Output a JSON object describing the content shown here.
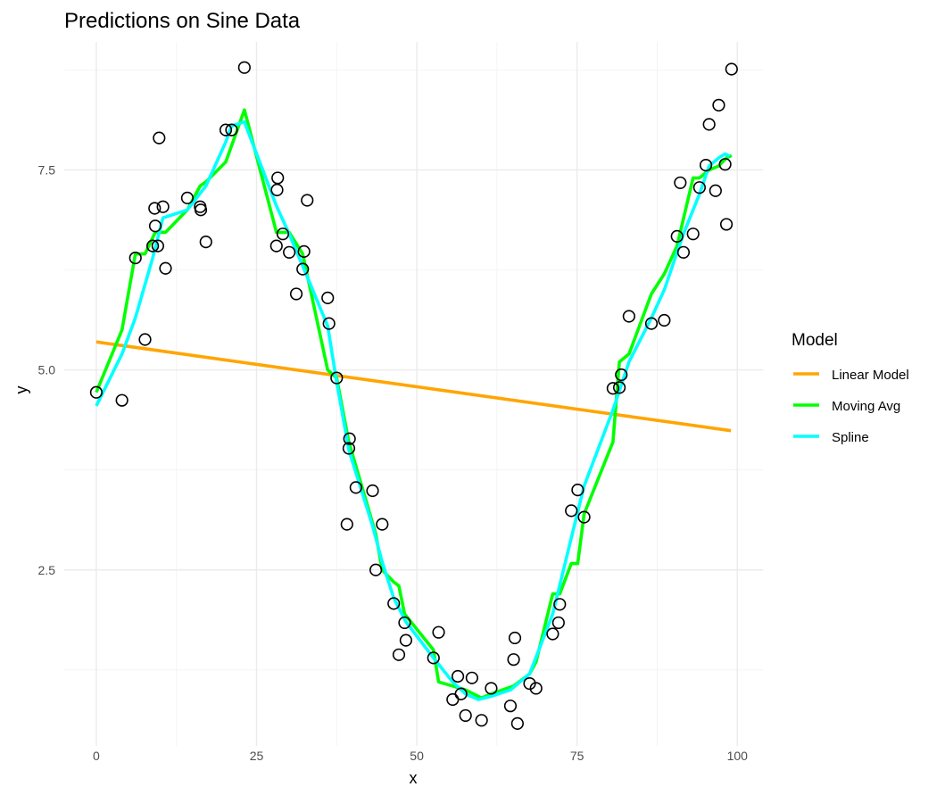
{
  "chart_data": {
    "type": "scatter",
    "title": "Predictions on Sine Data",
    "xlabel": "x",
    "ylabel": "y",
    "xlim": [
      -5,
      104
    ],
    "ylim": [
      0.3,
      9.1
    ],
    "x_ticks": [
      0,
      25,
      50,
      75,
      100
    ],
    "x_tick_labels": [
      "0",
      "25",
      "50",
      "75",
      "100"
    ],
    "y_ticks": [
      2.5,
      5.0,
      7.5
    ],
    "y_tick_labels": [
      "2.5",
      "5.0",
      "7.5"
    ],
    "grid": true,
    "legend": {
      "title": "Model",
      "position": "right"
    },
    "points": {
      "x": [
        0,
        4,
        6.1,
        7.6,
        8.8,
        9.1,
        9.2,
        9.6,
        9.8,
        10.4,
        10.8,
        14.2,
        16.2,
        16.3,
        17.1,
        20.2,
        21.1,
        23.1,
        28.1,
        28.2,
        28.3,
        29.1,
        30.1,
        31.2,
        32.2,
        32.4,
        32.9,
        36.1,
        36.3,
        37.5,
        39.1,
        39.4,
        39.5,
        40.5,
        43.1,
        43.6,
        44.6,
        46.4,
        47.2,
        48.1,
        48.3,
        52.6,
        53.4,
        55.6,
        56.4,
        56.9,
        57.6,
        58.6,
        60.1,
        61.6,
        64.6,
        65.1,
        65.3,
        65.7,
        67.6,
        68.6,
        71.2,
        72.1,
        72.3,
        74.1,
        75.1,
        76.1,
        80.6,
        81.6,
        81.9,
        83.1,
        86.6,
        88.6,
        90.6,
        91.1,
        91.6,
        93.1,
        94.1,
        95.1,
        95.6,
        96.6,
        97.1,
        98.1,
        98.3,
        99.1
      ],
      "y": [
        4.72,
        4.62,
        6.4,
        5.38,
        6.55,
        7.02,
        6.8,
        6.55,
        7.9,
        7.04,
        6.27,
        7.15,
        7.04,
        7.0,
        6.6,
        8.0,
        8.0,
        8.78,
        6.55,
        7.25,
        7.4,
        6.7,
        6.47,
        5.95,
        6.26,
        6.48,
        7.12,
        5.9,
        5.58,
        4.9,
        3.07,
        4.02,
        4.14,
        3.53,
        3.49,
        2.5,
        3.07,
        2.08,
        1.44,
        1.84,
        1.62,
        1.4,
        1.72,
        0.88,
        1.17,
        0.95,
        0.68,
        1.15,
        0.62,
        1.02,
        0.8,
        1.38,
        1.65,
        0.58,
        1.08,
        1.02,
        1.7,
        1.84,
        2.07,
        3.24,
        3.5,
        3.16,
        4.77,
        4.78,
        4.94,
        5.67,
        5.58,
        5.62,
        6.67,
        7.34,
        6.47,
        6.7,
        7.28,
        7.56,
        8.07,
        7.24,
        8.31,
        7.57,
        6.82,
        8.76
      ]
    },
    "series": [
      {
        "name": "Linear Model",
        "color": "#FFA500",
        "x": [
          0,
          99
        ],
        "y": [
          5.35,
          4.24
        ]
      },
      {
        "name": "Moving Avg",
        "color": "#00FF00",
        "x": [
          0,
          4,
          6.1,
          7.6,
          9.2,
          10.8,
          14.2,
          16.2,
          17.1,
          20.2,
          23.1,
          28.1,
          30.1,
          32.2,
          36.1,
          37.5,
          39.4,
          40.5,
          43.6,
          44.6,
          46.4,
          47.2,
          48.1,
          52.6,
          53.4,
          55.6,
          57.6,
          60.1,
          61.6,
          65.1,
          67.6,
          68.6,
          71.2,
          72.3,
          74.1,
          75.1,
          76.1,
          80.6,
          81.6,
          83.1,
          86.6,
          88.6,
          90.6,
          93.1,
          94.1,
          95.6,
          97.1,
          98.3,
          99.1
        ],
        "y": [
          4.72,
          5.5,
          6.45,
          6.45,
          6.72,
          6.72,
          7.0,
          7.3,
          7.35,
          7.6,
          8.25,
          6.72,
          6.72,
          6.45,
          5.0,
          4.9,
          4.1,
          3.8,
          2.95,
          2.5,
          2.35,
          2.3,
          1.95,
          1.5,
          1.1,
          1.05,
          1.0,
          0.9,
          0.95,
          1.05,
          1.2,
          1.35,
          2.2,
          2.2,
          2.58,
          2.58,
          3.2,
          4.1,
          5.1,
          5.2,
          5.95,
          6.2,
          6.55,
          7.4,
          7.4,
          7.5,
          7.55,
          7.65,
          7.68
        ]
      },
      {
        "name": "Spline",
        "color": "#00FFFF",
        "x": [
          0,
          4,
          6.1,
          8.8,
          10.4,
          14.2,
          17.1,
          20.2,
          21.1,
          23.1,
          28.1,
          30.1,
          32.2,
          36.1,
          37.5,
          39.4,
          43.1,
          44.6,
          46.4,
          48.3,
          52.6,
          55.6,
          57.6,
          59.6,
          61.6,
          64.6,
          67.6,
          71.2,
          74.1,
          76.1,
          80.6,
          83.1,
          86.6,
          88.6,
          91.6,
          94.1,
          95.6,
          97.1,
          98.1,
          98.8
        ],
        "y": [
          4.55,
          5.2,
          5.65,
          6.4,
          6.9,
          7.0,
          7.3,
          7.85,
          8.05,
          8.1,
          7.05,
          6.7,
          6.3,
          5.55,
          4.85,
          4.0,
          3.05,
          2.6,
          2.15,
          1.85,
          1.4,
          1.1,
          0.95,
          0.88,
          0.92,
          1.0,
          1.2,
          1.95,
          2.9,
          3.55,
          4.5,
          5.1,
          5.65,
          6.0,
          6.7,
          7.2,
          7.55,
          7.65,
          7.7,
          7.67
        ]
      }
    ]
  }
}
